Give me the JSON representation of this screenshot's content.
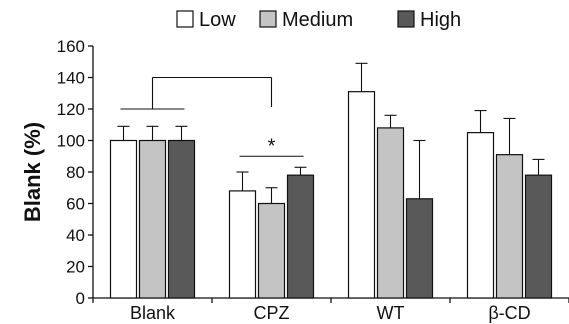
{
  "chart_data": {
    "type": "bar",
    "categories": [
      "Blank",
      "CPZ",
      "WT",
      "β-CD"
    ],
    "series": [
      {
        "name": "Low",
        "color": "#ffffff",
        "values": [
          100,
          68,
          131,
          105
        ],
        "errors": [
          9,
          12,
          18,
          14
        ]
      },
      {
        "name": "Medium",
        "color": "#c4c4c4",
        "values": [
          100,
          60,
          108,
          91
        ],
        "errors": [
          9,
          10,
          8,
          23
        ]
      },
      {
        "name": "High",
        "color": "#595959",
        "values": [
          100,
          78,
          63,
          78
        ],
        "errors": [
          9,
          5,
          37,
          10
        ]
      }
    ],
    "ylabel": "Blank (%)",
    "xlabel": "",
    "ylim": [
      0,
      160
    ],
    "yticks": [
      0,
      20,
      40,
      60,
      80,
      100,
      120,
      140,
      160
    ],
    "grid": false,
    "legend_position": "top",
    "significance_label": "*"
  }
}
